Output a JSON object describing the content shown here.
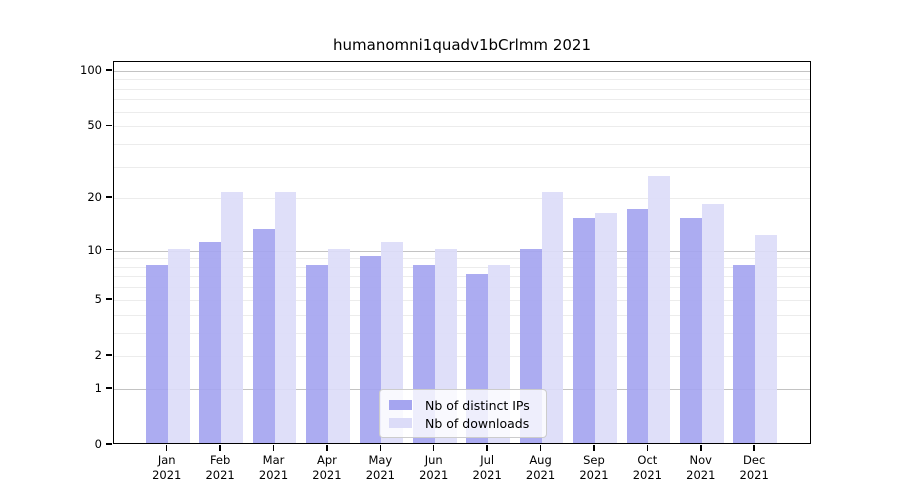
{
  "title": "humanomni1quadv1bCrlmm 2021",
  "chart_data": {
    "type": "bar",
    "title": "humanomni1quadv1bCrlmm 2021",
    "year_label": "2021",
    "categories": [
      "Jan",
      "Feb",
      "Mar",
      "Apr",
      "May",
      "Jun",
      "Jul",
      "Aug",
      "Sep",
      "Oct",
      "Nov",
      "Dec"
    ],
    "series": [
      {
        "name": "Nb of distinct IPs",
        "color": "#a5a5f0",
        "values": [
          8,
          11,
          13,
          8,
          9,
          8,
          7,
          10,
          15,
          17,
          15,
          8
        ]
      },
      {
        "name": "Nb of downloads",
        "color": "#dcdcf8",
        "values": [
          10,
          21,
          21,
          10,
          11,
          10,
          8,
          21,
          16,
          26,
          18,
          12
        ]
      }
    ],
    "xlabel": "",
    "ylabel": "",
    "yscale": "log1p",
    "ylim": [
      0,
      112
    ],
    "yticks": [
      0,
      1,
      2,
      5,
      10,
      20,
      50,
      100
    ],
    "major_gridlines": [
      1,
      10,
      100
    ],
    "minor_gridlines": [
      2,
      3,
      4,
      5,
      6,
      7,
      8,
      9,
      20,
      30,
      40,
      50,
      60,
      70,
      80,
      90
    ],
    "grid": true,
    "legend_position": "lower-center-inside",
    "axis_color": "#000000",
    "major_grid_color": "#c3c3c3",
    "minor_grid_color": "#ececec"
  }
}
